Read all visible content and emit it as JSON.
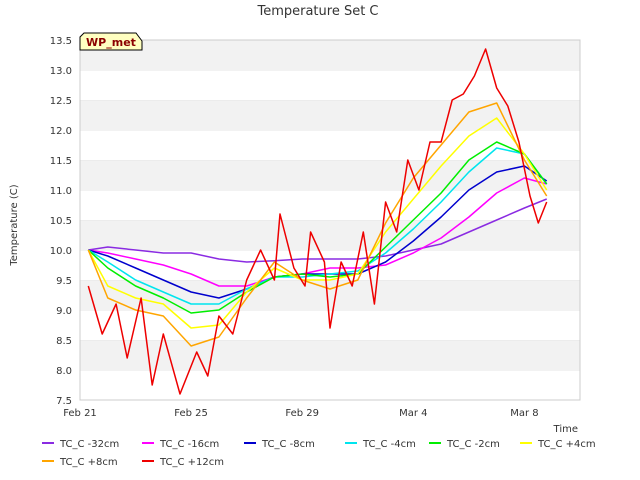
{
  "chart_data": {
    "type": "line",
    "title": "Temperature Set C",
    "xlabel": "Time",
    "ylabel": "Temperature (C)",
    "badge": "WP_met",
    "ylim": [
      7.5,
      13.5
    ],
    "xlim": [
      0,
      18
    ],
    "y_ticks": [
      7.5,
      8.0,
      8.5,
      9.0,
      9.5,
      10.0,
      10.5,
      11.0,
      11.5,
      12.0,
      12.5,
      13.0,
      13.5
    ],
    "x_ticks": [
      {
        "label": "Feb 21",
        "x": 0
      },
      {
        "label": "Feb 25",
        "x": 4
      },
      {
        "label": "Feb 29",
        "x": 8
      },
      {
        "label": "Mar 4",
        "x": 12
      },
      {
        "label": "Mar 8",
        "x": 16
      }
    ],
    "grid": "horizontal bands",
    "legend_position": "bottom",
    "series": [
      {
        "name": "TC_C -32cm",
        "color": "#8a2be2",
        "points": [
          [
            0.3,
            10.0
          ],
          [
            1.0,
            10.05
          ],
          [
            2.0,
            10.0
          ],
          [
            3.0,
            9.95
          ],
          [
            4.0,
            9.95
          ],
          [
            5.0,
            9.85
          ],
          [
            6.0,
            9.8
          ],
          [
            7.0,
            9.82
          ],
          [
            8.0,
            9.85
          ],
          [
            9.0,
            9.85
          ],
          [
            10.0,
            9.85
          ],
          [
            11.0,
            9.9
          ],
          [
            12.0,
            10.0
          ],
          [
            13.0,
            10.1
          ],
          [
            14.0,
            10.3
          ],
          [
            15.0,
            10.5
          ],
          [
            16.0,
            10.7
          ],
          [
            16.8,
            10.85
          ]
        ]
      },
      {
        "name": "TC_C -16cm",
        "color": "#ff00ff",
        "points": [
          [
            0.3,
            10.0
          ],
          [
            1.0,
            9.95
          ],
          [
            2.0,
            9.85
          ],
          [
            3.0,
            9.75
          ],
          [
            4.0,
            9.6
          ],
          [
            5.0,
            9.4
          ],
          [
            6.0,
            9.4
          ],
          [
            7.0,
            9.55
          ],
          [
            8.0,
            9.6
          ],
          [
            9.0,
            9.7
          ],
          [
            10.0,
            9.7
          ],
          [
            11.0,
            9.75
          ],
          [
            12.0,
            9.95
          ],
          [
            13.0,
            10.2
          ],
          [
            14.0,
            10.55
          ],
          [
            15.0,
            10.95
          ],
          [
            16.0,
            11.2
          ],
          [
            16.8,
            11.1
          ]
        ]
      },
      {
        "name": "TC_C -8cm",
        "color": "#0000cd",
        "points": [
          [
            0.3,
            10.0
          ],
          [
            1.0,
            9.9
          ],
          [
            2.0,
            9.7
          ],
          [
            3.0,
            9.5
          ],
          [
            4.0,
            9.3
          ],
          [
            5.0,
            9.2
          ],
          [
            6.0,
            9.35
          ],
          [
            7.0,
            9.55
          ],
          [
            8.0,
            9.6
          ],
          [
            9.0,
            9.6
          ],
          [
            10.0,
            9.6
          ],
          [
            11.0,
            9.8
          ],
          [
            12.0,
            10.15
          ],
          [
            13.0,
            10.55
          ],
          [
            14.0,
            11.0
          ],
          [
            15.0,
            11.3
          ],
          [
            16.0,
            11.4
          ],
          [
            16.8,
            11.15
          ]
        ]
      },
      {
        "name": "TC_C -4cm",
        "color": "#00e5ee",
        "points": [
          [
            0.3,
            10.0
          ],
          [
            1.0,
            9.8
          ],
          [
            2.0,
            9.5
          ],
          [
            3.0,
            9.3
          ],
          [
            4.0,
            9.1
          ],
          [
            5.0,
            9.1
          ],
          [
            6.0,
            9.35
          ],
          [
            7.0,
            9.55
          ],
          [
            8.0,
            9.55
          ],
          [
            9.0,
            9.6
          ],
          [
            10.0,
            9.65
          ],
          [
            11.0,
            9.95
          ],
          [
            12.0,
            10.35
          ],
          [
            13.0,
            10.8
          ],
          [
            14.0,
            11.3
          ],
          [
            15.0,
            11.7
          ],
          [
            16.0,
            11.6
          ],
          [
            16.8,
            11.1
          ]
        ]
      },
      {
        "name": "TC_C -2cm",
        "color": "#00ee00",
        "points": [
          [
            0.3,
            10.0
          ],
          [
            1.0,
            9.7
          ],
          [
            2.0,
            9.4
          ],
          [
            3.0,
            9.2
          ],
          [
            4.0,
            8.95
          ],
          [
            5.0,
            9.0
          ],
          [
            6.0,
            9.3
          ],
          [
            7.0,
            9.55
          ],
          [
            8.0,
            9.6
          ],
          [
            9.0,
            9.55
          ],
          [
            10.0,
            9.6
          ],
          [
            11.0,
            10.05
          ],
          [
            12.0,
            10.5
          ],
          [
            13.0,
            10.95
          ],
          [
            14.0,
            11.5
          ],
          [
            15.0,
            11.8
          ],
          [
            16.0,
            11.6
          ],
          [
            16.8,
            11.1
          ]
        ]
      },
      {
        "name": "TC_C +4cm",
        "color": "#ffff00",
        "points": [
          [
            0.3,
            10.0
          ],
          [
            1.0,
            9.4
          ],
          [
            2.0,
            9.2
          ],
          [
            3.0,
            9.1
          ],
          [
            4.0,
            8.7
          ],
          [
            5.0,
            8.75
          ],
          [
            6.0,
            9.3
          ],
          [
            7.0,
            9.7
          ],
          [
            8.0,
            9.5
          ],
          [
            9.0,
            9.5
          ],
          [
            10.0,
            9.6
          ],
          [
            11.0,
            10.3
          ],
          [
            12.0,
            10.85
          ],
          [
            13.0,
            11.4
          ],
          [
            14.0,
            11.9
          ],
          [
            15.0,
            12.2
          ],
          [
            16.0,
            11.6
          ],
          [
            16.8,
            11.0
          ]
        ]
      },
      {
        "name": "TC_C +8cm",
        "color": "#ffa500",
        "points": [
          [
            0.3,
            10.0
          ],
          [
            1.0,
            9.2
          ],
          [
            2.0,
            9.0
          ],
          [
            3.0,
            8.9
          ],
          [
            4.0,
            8.4
          ],
          [
            5.0,
            8.55
          ],
          [
            6.0,
            9.2
          ],
          [
            7.0,
            9.8
          ],
          [
            8.0,
            9.5
          ],
          [
            9.0,
            9.35
          ],
          [
            10.0,
            9.5
          ],
          [
            11.0,
            10.45
          ],
          [
            12.0,
            11.2
          ],
          [
            13.0,
            11.75
          ],
          [
            14.0,
            12.3
          ],
          [
            15.0,
            12.45
          ],
          [
            16.0,
            11.5
          ],
          [
            16.8,
            10.9
          ]
        ]
      },
      {
        "name": "TC_C +12cm",
        "color": "#ee0000",
        "points": [
          [
            0.3,
            9.4
          ],
          [
            0.8,
            8.6
          ],
          [
            1.3,
            9.1
          ],
          [
            1.7,
            8.2
          ],
          [
            2.2,
            9.2
          ],
          [
            2.6,
            7.75
          ],
          [
            3.0,
            8.6
          ],
          [
            3.6,
            7.6
          ],
          [
            4.2,
            8.3
          ],
          [
            4.6,
            7.9
          ],
          [
            5.0,
            8.9
          ],
          [
            5.5,
            8.6
          ],
          [
            6.0,
            9.5
          ],
          [
            6.5,
            10.0
          ],
          [
            7.0,
            9.5
          ],
          [
            7.2,
            10.6
          ],
          [
            7.7,
            9.7
          ],
          [
            8.1,
            9.4
          ],
          [
            8.3,
            10.3
          ],
          [
            8.8,
            9.8
          ],
          [
            9.0,
            8.7
          ],
          [
            9.4,
            9.8
          ],
          [
            9.8,
            9.4
          ],
          [
            10.2,
            10.3
          ],
          [
            10.6,
            9.1
          ],
          [
            11.0,
            10.8
          ],
          [
            11.4,
            10.3
          ],
          [
            11.8,
            11.5
          ],
          [
            12.2,
            11.0
          ],
          [
            12.6,
            11.8
          ],
          [
            13.0,
            11.8
          ],
          [
            13.4,
            12.5
          ],
          [
            13.8,
            12.6
          ],
          [
            14.2,
            12.9
          ],
          [
            14.6,
            13.35
          ],
          [
            15.0,
            12.7
          ],
          [
            15.4,
            12.4
          ],
          [
            15.8,
            11.8
          ],
          [
            16.2,
            10.9
          ],
          [
            16.5,
            10.45
          ],
          [
            16.8,
            10.8
          ]
        ]
      }
    ]
  }
}
